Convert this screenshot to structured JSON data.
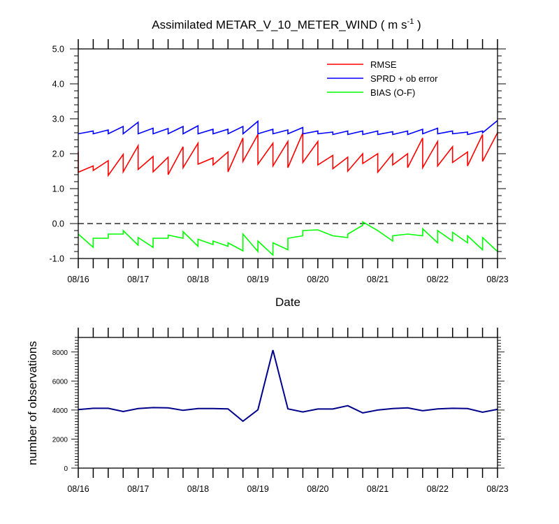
{
  "chart_data": [
    {
      "type": "line",
      "title_main": "Assimilated METAR_V_10_METER_WIND ( m s",
      "title_sup": "-1",
      "title_end": " )",
      "xlabel": "Date",
      "x_ticks": [
        "08/16",
        "08/17",
        "08/18",
        "08/19",
        "08/20",
        "08/21",
        "08/22",
        "08/23"
      ],
      "y_ticks": [
        "5.0",
        "4.0",
        "3.0",
        "2.0",
        "1.0",
        "0.0",
        "-1.0"
      ],
      "ylim": [
        -1.0,
        5.0
      ],
      "xlim_days": [
        0,
        7
      ],
      "legend_position": "top-right",
      "zero_line": "dashed",
      "series": [
        {
          "name": "RMSE",
          "color": "#ff0000",
          "points": [
            [
              0.0,
              2.05
            ],
            [
              0.0,
              1.47
            ],
            [
              0.25,
              1.65
            ],
            [
              0.25,
              1.52
            ],
            [
              0.5,
              1.8
            ],
            [
              0.5,
              1.38
            ],
            [
              0.75,
              1.98
            ],
            [
              0.75,
              1.48
            ],
            [
              1.0,
              2.23
            ],
            [
              1.0,
              1.55
            ],
            [
              1.25,
              1.92
            ],
            [
              1.25,
              1.48
            ],
            [
              1.5,
              1.9
            ],
            [
              1.5,
              1.4
            ],
            [
              1.75,
              2.2
            ],
            [
              1.75,
              1.6
            ],
            [
              2.0,
              2.3
            ],
            [
              2.0,
              1.7
            ],
            [
              2.25,
              1.88
            ],
            [
              2.25,
              1.68
            ],
            [
              2.5,
              2.05
            ],
            [
              2.5,
              1.48
            ],
            [
              2.75,
              2.45
            ],
            [
              2.75,
              1.78
            ],
            [
              3.0,
              2.55
            ],
            [
              3.0,
              1.7
            ],
            [
              3.25,
              2.3
            ],
            [
              3.25,
              1.65
            ],
            [
              3.5,
              2.35
            ],
            [
              3.5,
              1.6
            ],
            [
              3.75,
              2.6
            ],
            [
              3.75,
              1.75
            ],
            [
              4.0,
              2.35
            ],
            [
              4.0,
              1.68
            ],
            [
              4.25,
              1.95
            ],
            [
              4.25,
              1.57
            ],
            [
              4.5,
              1.9
            ],
            [
              4.5,
              1.5
            ],
            [
              4.75,
              2.0
            ],
            [
              4.75,
              1.72
            ],
            [
              5.0,
              2.0
            ],
            [
              5.0,
              1.47
            ],
            [
              5.25,
              2.0
            ],
            [
              5.25,
              1.68
            ],
            [
              5.5,
              2.0
            ],
            [
              5.5,
              1.6
            ],
            [
              5.75,
              2.45
            ],
            [
              5.75,
              1.6
            ],
            [
              6.0,
              2.35
            ],
            [
              6.0,
              1.65
            ],
            [
              6.25,
              2.2
            ],
            [
              6.25,
              1.75
            ],
            [
              6.5,
              2.05
            ],
            [
              6.5,
              1.65
            ],
            [
              6.75,
              2.55
            ],
            [
              6.75,
              1.78
            ],
            [
              7.0,
              2.6
            ]
          ]
        },
        {
          "name": "SPRD + ob error",
          "color": "#0000ff",
          "points": [
            [
              0.0,
              2.57
            ],
            [
              0.25,
              2.65
            ],
            [
              0.25,
              2.57
            ],
            [
              0.5,
              2.68
            ],
            [
              0.5,
              2.57
            ],
            [
              0.75,
              2.78
            ],
            [
              0.75,
              2.57
            ],
            [
              1.0,
              2.9
            ],
            [
              1.0,
              2.57
            ],
            [
              1.25,
              2.73
            ],
            [
              1.25,
              2.57
            ],
            [
              1.5,
              2.72
            ],
            [
              1.5,
              2.57
            ],
            [
              1.75,
              2.78
            ],
            [
              1.75,
              2.57
            ],
            [
              2.0,
              2.8
            ],
            [
              2.0,
              2.57
            ],
            [
              2.25,
              2.7
            ],
            [
              2.25,
              2.57
            ],
            [
              2.5,
              2.7
            ],
            [
              2.5,
              2.57
            ],
            [
              2.75,
              2.78
            ],
            [
              2.75,
              2.57
            ],
            [
              3.0,
              2.93
            ],
            [
              3.0,
              2.57
            ],
            [
              3.25,
              2.7
            ],
            [
              3.25,
              2.57
            ],
            [
              3.5,
              2.68
            ],
            [
              3.5,
              2.57
            ],
            [
              3.75,
              2.75
            ],
            [
              3.75,
              2.57
            ],
            [
              4.0,
              2.65
            ],
            [
              4.0,
              2.57
            ],
            [
              4.25,
              2.62
            ],
            [
              4.25,
              2.55
            ],
            [
              4.5,
              2.65
            ],
            [
              4.5,
              2.55
            ],
            [
              4.75,
              2.65
            ],
            [
              4.75,
              2.55
            ],
            [
              5.0,
              2.65
            ],
            [
              5.0,
              2.55
            ],
            [
              5.25,
              2.63
            ],
            [
              5.25,
              2.55
            ],
            [
              5.5,
              2.65
            ],
            [
              5.5,
              2.55
            ],
            [
              5.75,
              2.7
            ],
            [
              5.75,
              2.57
            ],
            [
              6.0,
              2.73
            ],
            [
              6.0,
              2.57
            ],
            [
              6.25,
              2.65
            ],
            [
              6.25,
              2.57
            ],
            [
              6.5,
              2.62
            ],
            [
              6.5,
              2.55
            ],
            [
              6.75,
              2.65
            ],
            [
              6.75,
              2.6
            ],
            [
              7.0,
              2.95
            ]
          ]
        },
        {
          "name": "BIAS (O-F)",
          "color": "#00ff00",
          "points": [
            [
              0.0,
              -0.3
            ],
            [
              0.25,
              -0.68
            ],
            [
              0.25,
              -0.42
            ],
            [
              0.5,
              -0.42
            ],
            [
              0.5,
              -0.3
            ],
            [
              0.75,
              -0.3
            ],
            [
              0.75,
              -0.2
            ],
            [
              1.0,
              -0.62
            ],
            [
              1.0,
              -0.4
            ],
            [
              1.25,
              -0.68
            ],
            [
              1.25,
              -0.42
            ],
            [
              1.5,
              -0.42
            ],
            [
              1.5,
              -0.33
            ],
            [
              1.75,
              -0.42
            ],
            [
              1.75,
              -0.23
            ],
            [
              2.0,
              -0.65
            ],
            [
              2.0,
              -0.45
            ],
            [
              2.25,
              -0.6
            ],
            [
              2.25,
              -0.5
            ],
            [
              2.5,
              -0.65
            ],
            [
              2.5,
              -0.55
            ],
            [
              2.75,
              -0.78
            ],
            [
              2.75,
              -0.3
            ],
            [
              3.0,
              -0.8
            ],
            [
              3.0,
              -0.5
            ],
            [
              3.25,
              -0.9
            ],
            [
              3.25,
              -0.55
            ],
            [
              3.5,
              -0.75
            ],
            [
              3.5,
              -0.42
            ],
            [
              3.75,
              -0.35
            ],
            [
              3.75,
              -0.2
            ],
            [
              4.0,
              -0.18
            ],
            [
              4.25,
              -0.35
            ],
            [
              4.25,
              -0.35
            ],
            [
              4.5,
              -0.4
            ],
            [
              4.5,
              -0.3
            ],
            [
              4.75,
              -0.05
            ],
            [
              4.75,
              0.05
            ],
            [
              5.0,
              -0.2
            ],
            [
              5.25,
              -0.5
            ],
            [
              5.25,
              -0.35
            ],
            [
              5.5,
              -0.3
            ],
            [
              5.5,
              -0.3
            ],
            [
              5.75,
              -0.35
            ],
            [
              5.75,
              -0.15
            ],
            [
              6.0,
              -0.55
            ],
            [
              6.0,
              -0.2
            ],
            [
              6.25,
              -0.5
            ],
            [
              6.25,
              -0.25
            ],
            [
              6.5,
              -0.55
            ],
            [
              6.5,
              -0.35
            ],
            [
              6.75,
              -0.75
            ],
            [
              6.75,
              -0.4
            ],
            [
              7.0,
              -0.8
            ]
          ]
        }
      ]
    },
    {
      "type": "line",
      "ylabel": "number of observations",
      "x_ticks": [
        "08/16",
        "08/17",
        "08/18",
        "08/19",
        "08/20",
        "08/21",
        "08/22",
        "08/23"
      ],
      "y_ticks": [
        "8000",
        "6000",
        "4000",
        "2000",
        "0"
      ],
      "ylim": [
        0,
        9000
      ],
      "xlim_days": [
        0,
        7
      ],
      "series": [
        {
          "color": "#00008b",
          "x": [
            0,
            0.25,
            0.5,
            0.75,
            1.0,
            1.25,
            1.5,
            1.75,
            2.0,
            2.25,
            2.5,
            2.75,
            3.0,
            3.25,
            3.5,
            3.75,
            4.0,
            4.25,
            4.5,
            4.75,
            5.0,
            5.25,
            5.5,
            5.75,
            6.0,
            6.25,
            6.5,
            6.75,
            7.0
          ],
          "values": [
            4030,
            4120,
            4120,
            3900,
            4100,
            4170,
            4150,
            3980,
            4100,
            4100,
            4080,
            3230,
            4020,
            8130,
            4080,
            3870,
            4070,
            4070,
            4300,
            3800,
            4000,
            4100,
            4150,
            3950,
            4080,
            4120,
            4100,
            3850,
            4050
          ]
        }
      ]
    }
  ]
}
